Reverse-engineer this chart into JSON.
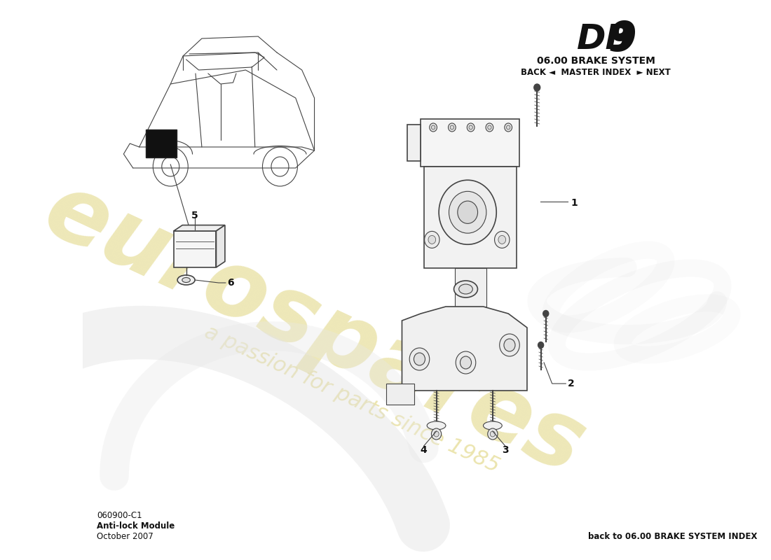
{
  "title_db9_part1": "DB",
  "title_db9_part2": "9",
  "title_system": "06.00 BRAKE SYSTEM",
  "nav_text": "BACK ◄  MASTER INDEX  ► NEXT",
  "part_code": "060900-C1",
  "part_name": "Anti-lock Module",
  "part_date": "October 2007",
  "back_link": "back to 06.00 BRAKE SYSTEM INDEX",
  "bg_color": "#ffffff",
  "text_color": "#111111",
  "line_color": "#444444",
  "watermark_color1": "#e8e0a0",
  "watermark_color2": "#d8d8d8",
  "label_color": "#111111"
}
